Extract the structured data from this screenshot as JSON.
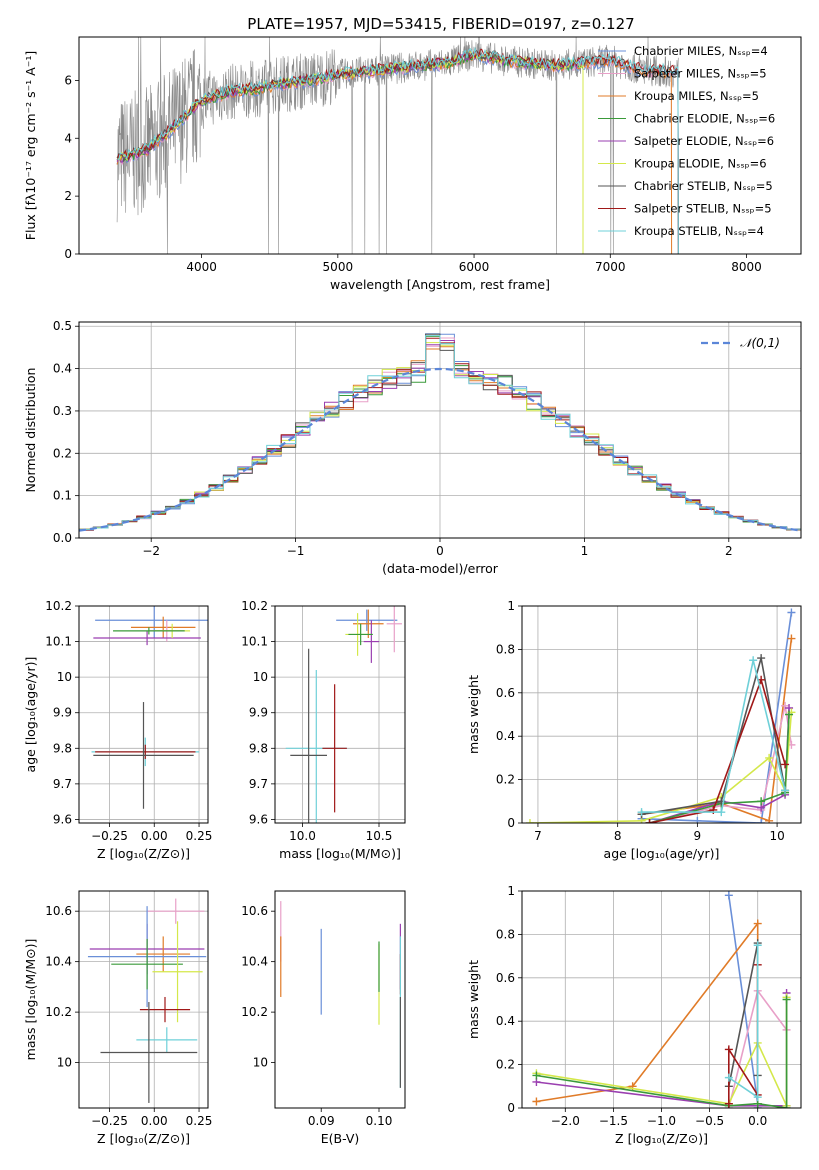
{
  "figure": {
    "title": "PLATE=1957, MJD=53415, FIBERID=0197, z=0.127"
  },
  "chart_data": [
    {
      "id": "spectrum",
      "type": "line",
      "xlabel": "wavelength [Angstrom, rest frame]",
      "ylabel": "Flux [fλ10⁻¹⁷ erg cm⁻² s⁻¹ A⁻¹]",
      "xlim": [
        3100,
        8400
      ],
      "ylim": [
        0,
        7.5
      ],
      "xticks": [
        4000,
        5000,
        6000,
        7000,
        8000
      ],
      "yticks": [
        0,
        2,
        4,
        6
      ],
      "grid": false,
      "legend_position": "top-right",
      "data_x": [
        3400,
        3600,
        3800,
        4000,
        4200,
        4400,
        4600,
        4800,
        5000,
        5200,
        5400,
        5600,
        5800,
        6000,
        6200,
        6400,
        6600,
        6800,
        7000,
        7200,
        7400
      ],
      "data_y": [
        3.3,
        3.6,
        4.4,
        5.3,
        5.6,
        5.7,
        5.9,
        6.0,
        6.2,
        6.3,
        6.4,
        6.5,
        6.6,
        6.9,
        6.7,
        6.6,
        6.5,
        6.6,
        6.7,
        6.4,
        6.3
      ],
      "series": [
        {
          "name": "Chabrier MILES, Nₛₛₚ=4",
          "color": "#6a8fd8",
          "end": 7500
        },
        {
          "name": "Salpeter MILES, Nₛₛₚ=5",
          "color": "#e8a0c8",
          "end": 7500
        },
        {
          "name": "Kroupa MILES, Nₛₛₚ=5",
          "color": "#e07b28",
          "end": 7450
        },
        {
          "name": "Chabrier ELODIE, Nₛₛₚ=6",
          "color": "#3a9a3a",
          "end": 6800
        },
        {
          "name": "Salpeter ELODIE, Nₛₛₚ=6",
          "color": "#9a3fb0",
          "end": 6800
        },
        {
          "name": "Kroupa ELODIE, Nₛₛₚ=6",
          "color": "#d4e84a",
          "end": 6800
        },
        {
          "name": "Chabrier STELIB, Nₛₛₚ=5",
          "color": "#555555",
          "end": 7500
        },
        {
          "name": "Salpeter STELIB, Nₛₛₚ=5",
          "color": "#a01818",
          "end": 7500
        },
        {
          "name": "Kroupa STELIB, Nₛₛₚ=4",
          "color": "#6fd0d8",
          "end": 7500
        }
      ]
    },
    {
      "id": "residuals",
      "type": "line",
      "xlabel": "(data-model)/error",
      "ylabel": "Normed distribution",
      "xlim": [
        -2.5,
        2.5
      ],
      "ylim": [
        0,
        0.51
      ],
      "xticks": [
        -2,
        -1,
        0,
        1,
        2
      ],
      "yticks": [
        0.0,
        0.1,
        0.2,
        0.3,
        0.4,
        0.5
      ],
      "xtick_labels": [
        "−2",
        "−1",
        "0",
        "1",
        "2"
      ],
      "ytick_labels": [
        "0.0",
        "0.1",
        "0.2",
        "0.3",
        "0.4",
        "0.5"
      ],
      "grid": true,
      "legend_position": "top-right",
      "reference": {
        "name": "𝒩(0,1)",
        "color": "#5b86d8",
        "style": "dashed"
      }
    },
    {
      "id": "age-vs-Z",
      "type": "scatter",
      "xlabel": "Z [log₁₀(Z/Z⊙)]",
      "ylabel": "age  [log₁₀(age/yr)]",
      "xlim": [
        -0.42,
        0.3
      ],
      "ylim": [
        9.59,
        10.2
      ],
      "xticks": [
        -0.25,
        0.0,
        0.25
      ],
      "xtick_labels": [
        "−0.25",
        "0.00",
        "0.25"
      ],
      "yticks": [
        9.6,
        9.7,
        9.8,
        9.9,
        10.0,
        10.1,
        10.2
      ],
      "grid": true,
      "points": [
        {
          "x": 0.0,
          "y": 10.16,
          "xerr": 0.33,
          "yerr": 0.05,
          "color": "#6a8fd8"
        },
        {
          "x": 0.05,
          "y": 10.14,
          "xerr": 0.18,
          "yerr": 0.03,
          "color": "#e07b28"
        },
        {
          "x": 0.07,
          "y": 10.13,
          "xerr": 0.1,
          "yerr": 0.03,
          "color": "#e8a0c8"
        },
        {
          "x": -0.04,
          "y": 10.11,
          "xerr": 0.3,
          "yerr": 0.02,
          "color": "#9a3fb0"
        },
        {
          "x": 0.1,
          "y": 10.13,
          "xerr": 0.1,
          "yerr": 0.02,
          "color": "#d4e84a"
        },
        {
          "x": -0.03,
          "y": 10.13,
          "xerr": 0.2,
          "yerr": 0.01,
          "color": "#3a9a3a"
        },
        {
          "x": -0.05,
          "y": 9.79,
          "xerr": 0.3,
          "yerr": 0.04,
          "color": "#6fd0d8"
        },
        {
          "x": -0.05,
          "y": 9.79,
          "xerr": 0.28,
          "yerr": 0.02,
          "color": "#a01818"
        },
        {
          "x": -0.06,
          "y": 9.78,
          "xerr": 0.28,
          "yerr": 0.15,
          "color": "#555555"
        }
      ]
    },
    {
      "id": "age-vs-mass",
      "type": "scatter",
      "xlabel": "mass [log₁₀(M/M⊙)]",
      "ylabel": "",
      "xlim": [
        9.82,
        10.67
      ],
      "ylim": [
        9.59,
        10.2
      ],
      "xticks": [
        10.0,
        10.5
      ],
      "xtick_labels": [
        "10.0",
        "10.5"
      ],
      "yticks": [
        9.6,
        9.7,
        9.8,
        9.9,
        10.0,
        10.1,
        10.2
      ],
      "grid": true,
      "points": [
        {
          "x": 10.42,
          "y": 10.16,
          "xerr": 0.2,
          "yerr": 0.03,
          "color": "#6a8fd8"
        },
        {
          "x": 10.43,
          "y": 10.15,
          "xerr": 0.1,
          "yerr": 0.04,
          "color": "#e07b28"
        },
        {
          "x": 10.6,
          "y": 10.15,
          "xerr": 0.05,
          "yerr": 0.08,
          "color": "#e8a0c8"
        },
        {
          "x": 10.45,
          "y": 10.1,
          "xerr": 0.05,
          "yerr": 0.06,
          "color": "#9a3fb0"
        },
        {
          "x": 10.36,
          "y": 10.12,
          "xerr": 0.08,
          "yerr": 0.06,
          "color": "#d4e84a"
        },
        {
          "x": 10.38,
          "y": 10.12,
          "xerr": 0.08,
          "yerr": 0.03,
          "color": "#3a9a3a"
        },
        {
          "x": 10.09,
          "y": 9.8,
          "xerr": 0.2,
          "yerr": 0.22,
          "color": "#6fd0d8"
        },
        {
          "x": 10.21,
          "y": 9.8,
          "xerr": 0.08,
          "yerr": 0.18,
          "color": "#a01818"
        },
        {
          "x": 10.04,
          "y": 9.78,
          "xerr": 0.12,
          "yerr": 0.3,
          "color": "#555555"
        }
      ]
    },
    {
      "id": "massweight-vs-age",
      "type": "line",
      "xlabel": "age  [log₁₀(age/yr)]",
      "ylabel": "mass weight",
      "xlim": [
        6.8,
        10.3
      ],
      "ylim": [
        0,
        1.0
      ],
      "xticks": [
        7,
        8,
        9,
        10
      ],
      "yticks": [
        0.0,
        0.2,
        0.4,
        0.6,
        0.8,
        1.0
      ],
      "grid": true,
      "series": [
        {
          "name": "Chabrier MILES",
          "color": "#6a8fd8",
          "x": [
            8.3,
            9.0,
            9.8,
            10.18
          ],
          "y": [
            0.02,
            0.01,
            0.0,
            0.97
          ]
        },
        {
          "name": "Kroupa MILES",
          "color": "#e07b28",
          "x": [
            8.3,
            9.3,
            9.9,
            10.18
          ],
          "y": [
            0.04,
            0.09,
            0.01,
            0.85
          ]
        },
        {
          "name": "Salpeter MILES",
          "color": "#e8a0c8",
          "x": [
            8.4,
            9.3,
            9.8,
            10.1,
            10.18
          ],
          "y": [
            0.0,
            0.08,
            0.06,
            0.54,
            0.36
          ]
        },
        {
          "name": "Salpeter ELODIE",
          "color": "#9a3fb0",
          "x": [
            8.4,
            9.3,
            9.8,
            10.1,
            10.15
          ],
          "y": [
            0.0,
            0.1,
            0.07,
            0.13,
            0.53
          ]
        },
        {
          "name": "Kroupa ELODIE",
          "color": "#d4e84a",
          "x": [
            6.9,
            8.3,
            9.3,
            9.9,
            10.1,
            10.18
          ],
          "y": [
            0.0,
            0.01,
            0.12,
            0.3,
            0.15,
            0.51
          ]
        },
        {
          "name": "Chabrier ELODIE",
          "color": "#3a9a3a",
          "x": [
            8.4,
            9.3,
            9.8,
            10.1,
            10.15
          ],
          "y": [
            0.0,
            0.09,
            0.1,
            0.14,
            0.5
          ]
        },
        {
          "name": "Chabrier STELIB",
          "color": "#555555",
          "x": [
            8.3,
            9.3,
            9.8,
            10.1
          ],
          "y": [
            0.04,
            0.1,
            0.76,
            0.15
          ]
        },
        {
          "name": "Salpeter STELIB",
          "color": "#a01818",
          "x": [
            8.4,
            9.2,
            9.8,
            10.1
          ],
          "y": [
            0.0,
            0.06,
            0.66,
            0.27
          ]
        },
        {
          "name": "Kroupa STELIB",
          "color": "#6fd0d8",
          "x": [
            8.3,
            9.3,
            9.7,
            10.1
          ],
          "y": [
            0.05,
            0.05,
            0.75,
            0.15
          ]
        }
      ]
    },
    {
      "id": "mass-vs-Z",
      "type": "scatter",
      "xlabel": "Z [log₁₀(Z/Z⊙)]",
      "ylabel": "mass [log₁₀(M/M⊙)]",
      "xlim": [
        -0.42,
        0.3
      ],
      "ylim": [
        9.82,
        10.68
      ],
      "xticks": [
        -0.25,
        0.0,
        0.25
      ],
      "xtick_labels": [
        "−0.25",
        "0.00",
        "0.25"
      ],
      "yticks": [
        10.0,
        10.2,
        10.4,
        10.6
      ],
      "grid": true,
      "points": [
        {
          "x": 0.12,
          "y": 10.6,
          "xerr": 0.16,
          "yerr": 0.05,
          "color": "#e8a0c8"
        },
        {
          "x": -0.04,
          "y": 10.45,
          "xerr": 0.32,
          "yerr": 0.1,
          "color": "#9a3fb0"
        },
        {
          "x": 0.05,
          "y": 10.43,
          "xerr": 0.15,
          "yerr": 0.07,
          "color": "#e07b28"
        },
        {
          "x": -0.04,
          "y": 10.42,
          "xerr": 0.33,
          "yerr": 0.2,
          "color": "#6a8fd8"
        },
        {
          "x": -0.04,
          "y": 10.39,
          "xerr": 0.2,
          "yerr": 0.1,
          "color": "#3a9a3a"
        },
        {
          "x": 0.13,
          "y": 10.36,
          "xerr": 0.14,
          "yerr": 0.2,
          "color": "#d4e84a"
        },
        {
          "x": 0.06,
          "y": 10.21,
          "xerr": 0.14,
          "yerr": 0.05,
          "color": "#a01818"
        },
        {
          "x": 0.07,
          "y": 10.09,
          "xerr": 0.17,
          "yerr": 0.05,
          "color": "#6fd0d8"
        },
        {
          "x": -0.03,
          "y": 10.04,
          "xerr": 0.27,
          "yerr": 0.2,
          "color": "#555555"
        }
      ]
    },
    {
      "id": "mass-vs-EBV",
      "type": "scatter",
      "xlabel": "E(B-V)",
      "ylabel": "",
      "xlim": [
        0.082,
        0.1045
      ],
      "ylim": [
        9.82,
        10.68
      ],
      "xticks": [
        0.09,
        0.1
      ],
      "xtick_labels": [
        "0.09",
        "0.10"
      ],
      "yticks": [
        10.0,
        10.2,
        10.4,
        10.6
      ],
      "grid": false,
      "points": [
        {
          "x": 0.083,
          "y": 10.52,
          "xerr": 0,
          "yerr": 0.12,
          "color": "#e8a0c8"
        },
        {
          "x": 0.083,
          "y": 10.38,
          "xerr": 0,
          "yerr": 0.12,
          "color": "#e07b28"
        },
        {
          "x": 0.09,
          "y": 10.36,
          "xerr": 0,
          "yerr": 0.17,
          "color": "#6a8fd8"
        },
        {
          "x": 0.1,
          "y": 10.31,
          "xerr": 0,
          "yerr": 0.16,
          "color": "#d4e84a"
        },
        {
          "x": 0.1,
          "y": 10.38,
          "xerr": 0,
          "yerr": 0.1,
          "color": "#3a9a3a"
        },
        {
          "x": 0.1037,
          "y": 10.42,
          "xerr": 0,
          "yerr": 0.13,
          "color": "#9a3fb0"
        },
        {
          "x": 0.1037,
          "y": 10.35,
          "xerr": 0,
          "yerr": 0.08,
          "color": "#a01818"
        },
        {
          "x": 0.1037,
          "y": 10.2,
          "xerr": 0,
          "yerr": 0.3,
          "color": "#6fd0d8"
        },
        {
          "x": 0.1037,
          "y": 10.08,
          "xerr": 0,
          "yerr": 0.18,
          "color": "#555555"
        }
      ]
    },
    {
      "id": "massweight-vs-Z",
      "type": "line",
      "xlabel": "Z [log₁₀(Z/Z⊙)]",
      "ylabel": "mass weight",
      "xlim": [
        -2.45,
        0.45
      ],
      "ylim": [
        0,
        1.0
      ],
      "xticks": [
        -2.0,
        -1.5,
        -1.0,
        -0.5,
        0.0
      ],
      "xtick_labels": [
        "−2.0",
        "−1.5",
        "−1.0",
        "−0.5",
        "0.0"
      ],
      "yticks": [
        0.0,
        0.2,
        0.4,
        0.6,
        0.8,
        1.0
      ],
      "grid": true,
      "series": [
        {
          "name": "Chabrier MILES",
          "color": "#6a8fd8",
          "x": [
            -0.3,
            0.0,
            0.0
          ],
          "y": [
            0.98,
            0.02,
            0.0
          ]
        },
        {
          "name": "Kroupa MILES",
          "color": "#e07b28",
          "x": [
            -2.3,
            -1.3,
            0.0,
            0.0
          ],
          "y": [
            0.03,
            0.1,
            0.85,
            0.02
          ]
        },
        {
          "name": "Salpeter MILES",
          "color": "#e8a0c8",
          "x": [
            -0.3,
            0.0,
            0.3
          ],
          "y": [
            0.0,
            0.54,
            0.36
          ]
        },
        {
          "name": "Salpeter ELODIE",
          "color": "#9a3fb0",
          "x": [
            -2.3,
            -0.3,
            0.0,
            0.3,
            0.3
          ],
          "y": [
            0.12,
            0.01,
            0.01,
            0.01,
            0.53
          ]
        },
        {
          "name": "Kroupa ELODIE",
          "color": "#d4e84a",
          "x": [
            -2.3,
            -0.3,
            0.0,
            0.3,
            0.3
          ],
          "y": [
            0.16,
            0.02,
            0.3,
            0.01,
            0.51
          ]
        },
        {
          "name": "Chabrier ELODIE",
          "color": "#3a9a3a",
          "x": [
            -2.3,
            -0.3,
            0.0,
            0.3,
            0.3
          ],
          "y": [
            0.15,
            0.01,
            0.02,
            0.0,
            0.5
          ]
        },
        {
          "name": "Chabrier STELIB",
          "color": "#555555",
          "x": [
            -0.3,
            0.0,
            0.0
          ],
          "y": [
            0.1,
            0.76,
            0.15
          ]
        },
        {
          "name": "Salpeter STELIB",
          "color": "#a01818",
          "x": [
            -0.3,
            -0.3,
            0.0,
            0.0
          ],
          "y": [
            0.02,
            0.27,
            0.06,
            0.66
          ]
        },
        {
          "name": "Kroupa STELIB",
          "color": "#6fd0d8",
          "x": [
            -0.3,
            0.0,
            0.0
          ],
          "y": [
            0.14,
            0.05,
            0.75
          ]
        }
      ]
    }
  ]
}
